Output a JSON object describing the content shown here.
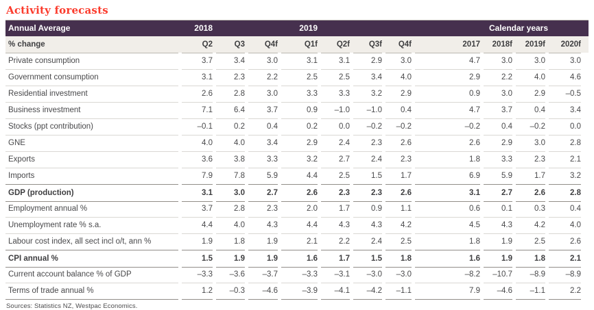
{
  "title": "Activity forecasts",
  "colors": {
    "title_red": "#fb3b2c",
    "header_purple": "#46304e",
    "subheader_beige": "#f1eee9",
    "rule_light": "#d9d7d3",
    "rule_strong": "#918d88",
    "text": "#48484a"
  },
  "table": {
    "group_header": {
      "annual_average_label": "Annual Average",
      "group_2018": "2018",
      "group_2019": "2019",
      "group_calendar_years": "Calendar years"
    },
    "column_header": {
      "label": "% change",
      "columns": [
        "Q2",
        "Q3",
        "Q4f",
        "Q1f",
        "Q2f",
        "Q3f",
        "Q4f",
        "2017",
        "2018f",
        "2019f",
        "2020f"
      ]
    },
    "rows": [
      {
        "label": "Private consumption",
        "bold": false,
        "values": [
          "3.7",
          "3.4",
          "3.0",
          "3.1",
          "3.1",
          "2.9",
          "3.0",
          "4.7",
          "3.0",
          "3.0",
          "3.0"
        ]
      },
      {
        "label": "Government consumption",
        "bold": false,
        "values": [
          "3.1",
          "2.3",
          "2.2",
          "2.5",
          "2.5",
          "3.4",
          "4.0",
          "2.9",
          "2.2",
          "4.0",
          "4.6"
        ]
      },
      {
        "label": "Residential investment",
        "bold": false,
        "values": [
          "2.6",
          "2.8",
          "3.0",
          "3.3",
          "3.3",
          "3.2",
          "2.9",
          "0.9",
          "3.0",
          "2.9",
          "–0.5"
        ]
      },
      {
        "label": "Business investment",
        "bold": false,
        "values": [
          "7.1",
          "6.4",
          "3.7",
          "0.9",
          "–1.0",
          "–1.0",
          "0.4",
          "4.7",
          "3.7",
          "0.4",
          "3.4"
        ]
      },
      {
        "label": "Stocks (ppt contribution)",
        "bold": false,
        "values": [
          "–0.1",
          "0.2",
          "0.4",
          "0.2",
          "0.0",
          "–0.2",
          "–0.2",
          "–0.2",
          "0.4",
          "–0.2",
          "0.0"
        ]
      },
      {
        "label": "GNE",
        "bold": false,
        "values": [
          "4.0",
          "4.0",
          "3.4",
          "2.9",
          "2.4",
          "2.3",
          "2.6",
          "2.6",
          "2.9",
          "3.0",
          "2.8"
        ]
      },
      {
        "label": "Exports",
        "bold": false,
        "values": [
          "3.6",
          "3.8",
          "3.3",
          "3.2",
          "2.7",
          "2.4",
          "2.3",
          "1.8",
          "3.3",
          "2.3",
          "2.1"
        ]
      },
      {
        "label": "Imports",
        "bold": false,
        "values": [
          "7.9",
          "7.8",
          "5.9",
          "4.4",
          "2.5",
          "1.5",
          "1.7",
          "6.9",
          "5.9",
          "1.7",
          "3.2"
        ]
      },
      {
        "label": "GDP (production)",
        "bold": true,
        "values": [
          "3.1",
          "3.0",
          "2.7",
          "2.6",
          "2.3",
          "2.3",
          "2.6",
          "3.1",
          "2.7",
          "2.6",
          "2.8"
        ]
      },
      {
        "label": "Employment annual %",
        "bold": false,
        "values": [
          "3.7",
          "2.8",
          "2.3",
          "2.0",
          "1.7",
          "0.9",
          "1.1",
          "0.6",
          "0.1",
          "0.3",
          "0.4"
        ]
      },
      {
        "label": "Unemployment rate % s.a.",
        "bold": false,
        "values": [
          "4.4",
          "4.0",
          "4.3",
          "4.4",
          "4.3",
          "4.3",
          "4.2",
          "4.5",
          "4.3",
          "4.2",
          "4.0"
        ]
      },
      {
        "label": "Labour cost index, all sect incl o/t, ann %",
        "bold": false,
        "values": [
          "1.9",
          "1.8",
          "1.9",
          "2.1",
          "2.2",
          "2.4",
          "2.5",
          "1.8",
          "1.9",
          "2.5",
          "2.6"
        ]
      },
      {
        "label": "CPI annual %",
        "bold": true,
        "values": [
          "1.5",
          "1.9",
          "1.9",
          "1.6",
          "1.7",
          "1.5",
          "1.8",
          "1.6",
          "1.9",
          "1.8",
          "2.1"
        ]
      },
      {
        "label": "Current account balance % of GDP",
        "bold": false,
        "values": [
          "–3.3",
          "–3.6",
          "–3.7",
          "–3.3",
          "–3.1",
          "–3.0",
          "–3.0",
          "–8.2",
          "–10.7",
          "–8.9",
          "–8.9"
        ]
      },
      {
        "label": "Terms of trade annual %",
        "bold": false,
        "values": [
          "1.2",
          "–0.3",
          "–4.6",
          "–3.9",
          "–4.1",
          "–4.2",
          "–1.1",
          "7.9",
          "–4.6",
          "–1.1",
          "2.2"
        ]
      }
    ]
  },
  "footer": {
    "sources": "Sources: Statistics NZ, Westpac Economics."
  }
}
